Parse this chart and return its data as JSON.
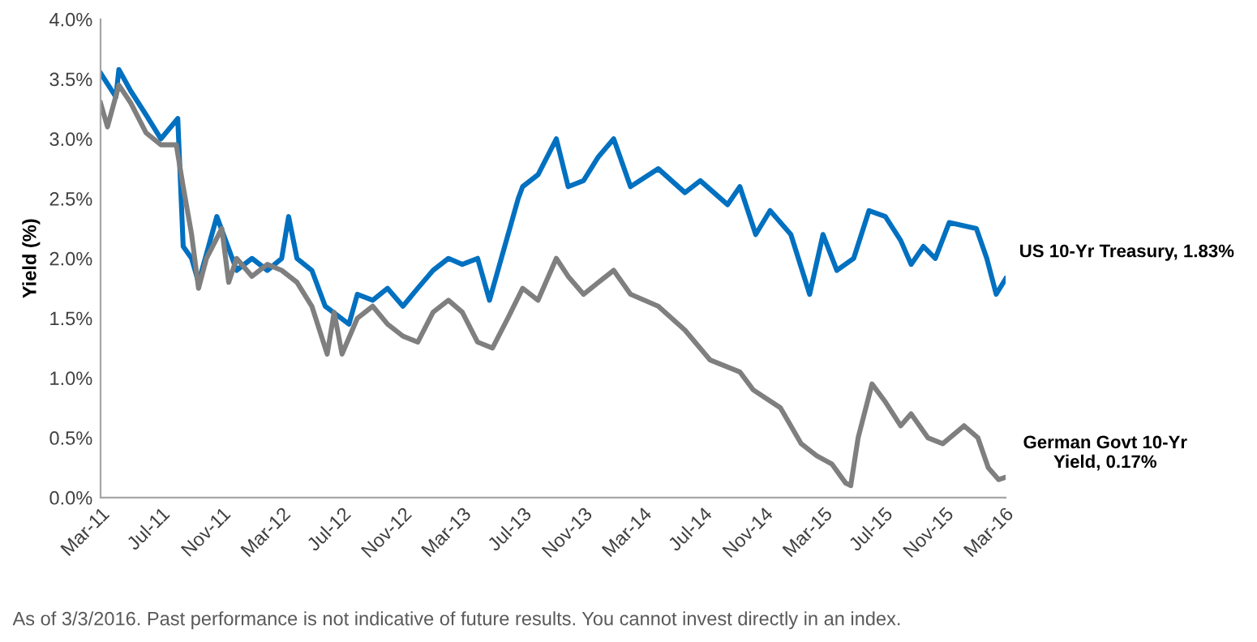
{
  "chart_data": {
    "type": "line",
    "ylabel": "Yield (%)",
    "legend": false,
    "grid": false,
    "marker": "none",
    "line_style": "solid",
    "xlim": [
      "2011-03-01",
      "2016-03-03"
    ],
    "xticks": [
      {
        "value": "2011-03-01",
        "label": "Mar-11"
      },
      {
        "value": "2011-07-01",
        "label": "Jul-11"
      },
      {
        "value": "2011-11-01",
        "label": "Nov-11"
      },
      {
        "value": "2012-03-01",
        "label": "Mar-12"
      },
      {
        "value": "2012-07-01",
        "label": "Jul-12"
      },
      {
        "value": "2012-11-01",
        "label": "Nov-12"
      },
      {
        "value": "2013-03-01",
        "label": "Mar-13"
      },
      {
        "value": "2013-07-01",
        "label": "Jul-13"
      },
      {
        "value": "2013-11-01",
        "label": "Nov-13"
      },
      {
        "value": "2014-03-01",
        "label": "Mar-14"
      },
      {
        "value": "2014-07-01",
        "label": "Jul-14"
      },
      {
        "value": "2014-11-01",
        "label": "Nov-14"
      },
      {
        "value": "2015-03-01",
        "label": "Mar-15"
      },
      {
        "value": "2015-07-01",
        "label": "Jul-15"
      },
      {
        "value": "2015-11-01",
        "label": "Nov-15"
      },
      {
        "value": "2016-03-01",
        "label": "Mar-16"
      }
    ],
    "ylim": [
      0,
      4
    ],
    "yticks": [
      {
        "value": 0,
        "label": "0.0%"
      },
      {
        "value": 0.5,
        "label": "0.5%"
      },
      {
        "value": 1,
        "label": "1.0%"
      },
      {
        "value": 1.5,
        "label": "1.5%"
      },
      {
        "value": 2,
        "label": "2.0%"
      },
      {
        "value": 2.5,
        "label": "2.5%"
      },
      {
        "value": 3,
        "label": "3.0%"
      },
      {
        "value": 3.5,
        "label": "3.5%"
      },
      {
        "value": 4,
        "label": "4.0%"
      }
    ],
    "series": [
      {
        "name": "US 10-Yr Treasury, 1.83%",
        "color": "#0070c0",
        "x": [
          "2011-03-01",
          "2011-04-01",
          "2011-04-07",
          "2011-05-01",
          "2011-06-01",
          "2011-07-01",
          "2011-08-04",
          "2011-08-15",
          "2011-09-01",
          "2011-09-15",
          "2011-10-22",
          "2011-12-01",
          "2012-01-01",
          "2012-02-01",
          "2012-03-01",
          "2012-03-15",
          "2012-04-01",
          "2012-05-01",
          "2012-05-28",
          "2012-07-15",
          "2012-08-01",
          "2012-09-01",
          "2012-10-01",
          "2012-11-01",
          "2012-12-01",
          "2013-01-01",
          "2013-02-01",
          "2013-03-01",
          "2013-04-01",
          "2013-04-25",
          "2013-06-22",
          "2013-07-01",
          "2013-08-01",
          "2013-09-07",
          "2013-10-01",
          "2013-11-01",
          "2013-12-01",
          "2014-01-01",
          "2014-02-04",
          "2014-04-01",
          "2014-05-25",
          "2014-06-25",
          "2014-08-19",
          "2014-09-13",
          "2014-10-15",
          "2014-11-13",
          "2014-12-25",
          "2015-02-01",
          "2015-02-28",
          "2015-03-28",
          "2015-05-01",
          "2015-06-01",
          "2015-07-04",
          "2015-08-04",
          "2015-08-25",
          "2015-09-19",
          "2015-10-13",
          "2015-11-10",
          "2016-01-04",
          "2016-01-25",
          "2016-02-13",
          "2016-03-03"
        ],
        "values": [
          3.55,
          3.35,
          3.58,
          3.4,
          3.2,
          3.0,
          3.17,
          2.1,
          2.0,
          1.8,
          2.35,
          1.9,
          2.0,
          1.9,
          2.0,
          2.35,
          2.0,
          1.9,
          1.6,
          1.45,
          1.7,
          1.65,
          1.75,
          1.6,
          1.75,
          1.9,
          2.0,
          1.95,
          2.0,
          1.65,
          2.5,
          2.6,
          2.7,
          3.0,
          2.6,
          2.65,
          2.85,
          3.0,
          2.6,
          2.75,
          2.55,
          2.65,
          2.45,
          2.6,
          2.2,
          2.4,
          2.2,
          1.7,
          2.2,
          1.9,
          2.0,
          2.4,
          2.35,
          2.15,
          1.95,
          2.1,
          2.0,
          2.3,
          2.25,
          2.0,
          1.7,
          1.83
        ]
      },
      {
        "name": "German Govt 10-Yr Yield, 0.17%",
        "color": "#7f7f7f",
        "x": [
          "2011-03-01",
          "2011-03-15",
          "2011-04-07",
          "2011-05-01",
          "2011-06-01",
          "2011-07-01",
          "2011-08-01",
          "2011-08-15",
          "2011-09-01",
          "2011-09-15",
          "2011-10-01",
          "2011-11-01",
          "2011-11-15",
          "2011-12-01",
          "2012-01-01",
          "2012-02-01",
          "2012-03-01",
          "2012-04-01",
          "2012-05-01",
          "2012-06-01",
          "2012-06-15",
          "2012-07-01",
          "2012-08-01",
          "2012-09-01",
          "2012-10-01",
          "2012-11-01",
          "2012-12-01",
          "2013-01-01",
          "2013-02-01",
          "2013-03-01",
          "2013-04-01",
          "2013-05-01",
          "2013-06-01",
          "2013-07-01",
          "2013-08-01",
          "2013-09-07",
          "2013-10-01",
          "2013-11-01",
          "2013-12-01",
          "2014-01-01",
          "2014-02-04",
          "2014-04-01",
          "2014-05-25",
          "2014-07-15",
          "2014-09-13",
          "2014-10-10",
          "2014-12-04",
          "2015-01-15",
          "2015-02-15",
          "2015-03-18",
          "2015-04-15",
          "2015-04-25",
          "2015-05-10",
          "2015-06-07",
          "2015-07-04",
          "2015-08-04",
          "2015-08-25",
          "2015-09-28",
          "2015-10-28",
          "2015-12-10",
          "2016-01-07",
          "2016-01-28",
          "2016-02-18",
          "2016-03-03"
        ],
        "values": [
          3.3,
          3.1,
          3.45,
          3.3,
          3.05,
          2.95,
          2.95,
          2.6,
          2.2,
          1.75,
          2.0,
          2.25,
          1.8,
          2.0,
          1.85,
          1.95,
          1.9,
          1.8,
          1.6,
          1.2,
          1.55,
          1.2,
          1.5,
          1.6,
          1.45,
          1.35,
          1.3,
          1.55,
          1.65,
          1.55,
          1.3,
          1.25,
          1.5,
          1.75,
          1.65,
          2.0,
          1.85,
          1.7,
          1.8,
          1.9,
          1.7,
          1.6,
          1.4,
          1.15,
          1.05,
          0.9,
          0.75,
          0.45,
          0.35,
          0.28,
          0.12,
          0.1,
          0.5,
          0.95,
          0.8,
          0.6,
          0.7,
          0.5,
          0.45,
          0.6,
          0.5,
          0.25,
          0.15,
          0.17
        ]
      }
    ],
    "annotations": [
      "As of 3/3/2016. Past performance is not indicative of future results. You cannot invest directly in an index."
    ]
  }
}
